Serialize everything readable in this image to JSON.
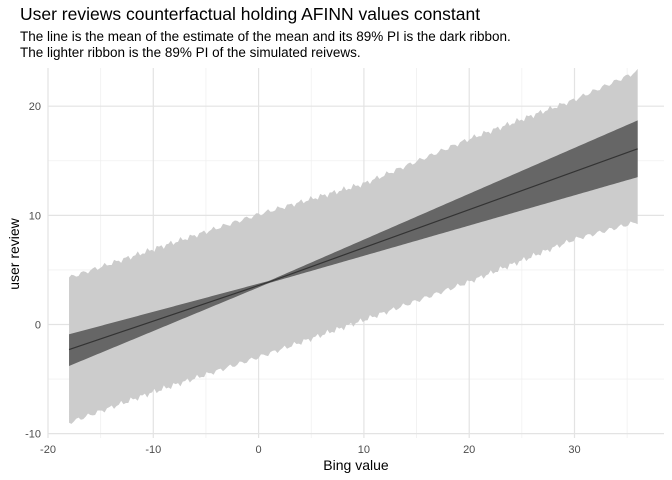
{
  "chart_data": {
    "type": "area",
    "title": "User reviews counterfactual holding AFINN values constant",
    "subtitle_lines": [
      "The line is the mean of the estimate of the mean and its 89% PI is the dark ribbon.",
      "The lighter ribbon is the 89% PI of the simulated reivews."
    ],
    "xlabel": "Bing value",
    "ylabel": "user review",
    "xlim": [
      -20,
      38.5
    ],
    "ylim": [
      -10.4,
      23.5
    ],
    "x_ticks": [
      -20,
      -10,
      0,
      10,
      20,
      30
    ],
    "x_tick_labels": [
      "-20",
      "-10",
      "0",
      "10",
      "20",
      "30"
    ],
    "y_ticks": [
      -10,
      0,
      10,
      20
    ],
    "y_tick_labels": [
      "-10",
      "0",
      "10",
      "20"
    ],
    "grid": true,
    "legend": "none",
    "series": [
      {
        "role": "mean line",
        "color": "#333333",
        "x": [
          -18,
          1,
          36
        ],
        "y": [
          -2.3,
          3.9,
          16.1
        ]
      },
      {
        "role": "89% PI of mean (dark ribbon)",
        "color": "#666666",
        "x": [
          -18,
          1,
          36
        ],
        "lower": [
          -3.8,
          3.8,
          13.5
        ],
        "upper": [
          -0.9,
          4.0,
          18.7
        ]
      },
      {
        "role": "89% PI of simulated reviews (light ribbon)",
        "color": "#cccccc",
        "x": [
          -18,
          -10,
          0,
          10,
          20,
          30,
          36
        ],
        "lower": [
          -9.0,
          -6.2,
          -3.0,
          0.4,
          3.9,
          7.8,
          9.4
        ],
        "upper": [
          4.3,
          6.9,
          10.1,
          12.9,
          17.0,
          20.6,
          23.2
        ]
      }
    ]
  }
}
